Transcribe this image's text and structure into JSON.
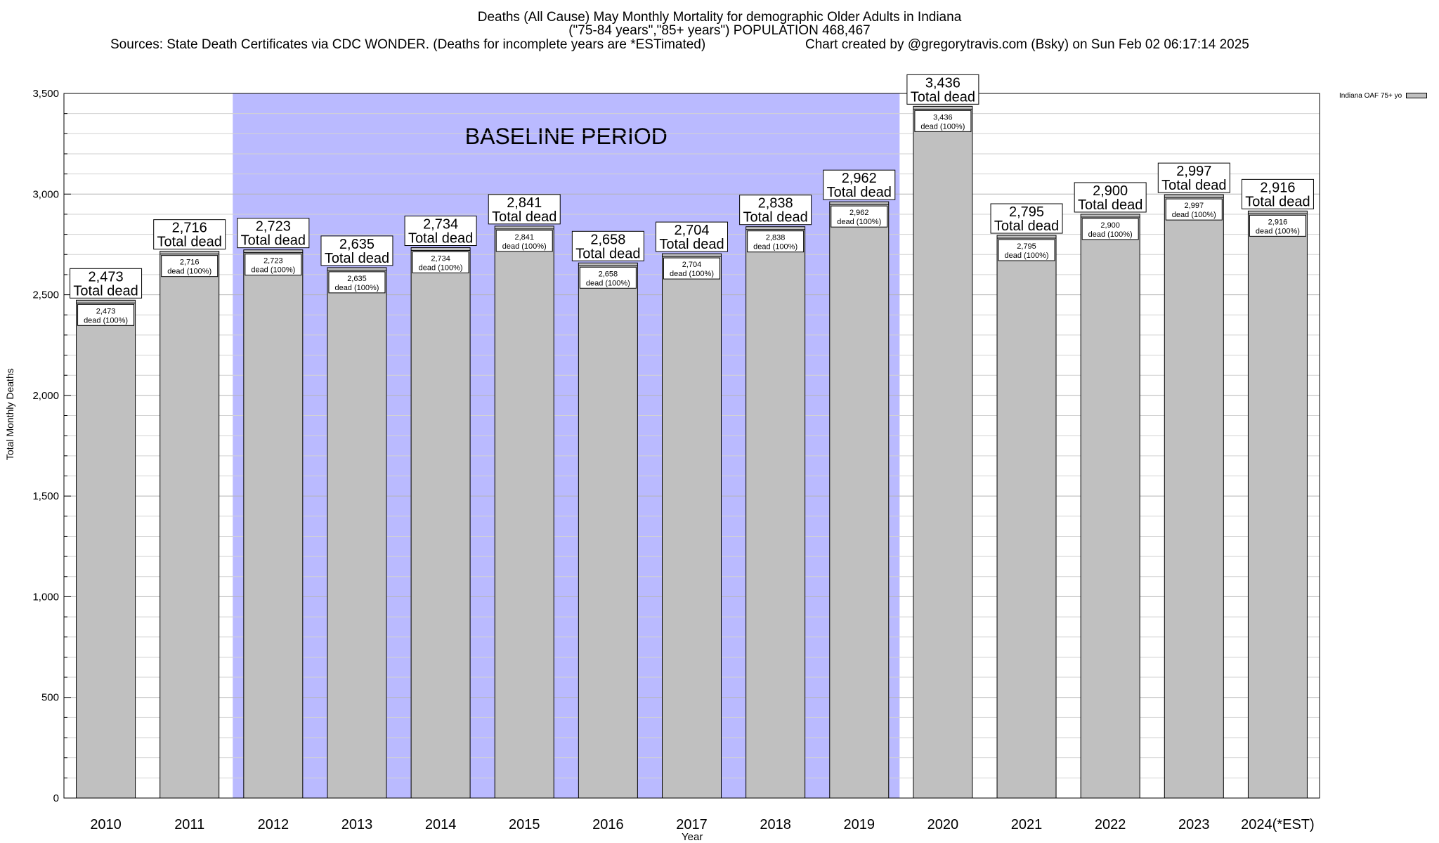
{
  "chart_data": {
    "type": "bar",
    "title_lines": [
      "Deaths (All Cause) May Monthly Mortality for demographic Older Adults in Indiana",
      "(\"75-84 years\",\"85+ years\") POPULATION 468,467"
    ],
    "sources": "Sources: State Death Certificates via CDC WONDER. (Deaths for incomplete years are *ESTimated)",
    "credit": "Chart created by @gregorytravis.com (Bsky) on Sun Feb 02 06:17:14 2025",
    "xlabel": "Year",
    "ylabel": "Total Monthly Deaths",
    "ylim": [
      0,
      3500
    ],
    "yticks": [
      0,
      500,
      1000,
      1500,
      2000,
      2500,
      3000,
      3500
    ],
    "ytick_labels": [
      "0",
      "500",
      "1,000",
      "1,500",
      "2,000",
      "2,500",
      "3,000",
      "3,500"
    ],
    "grid": true,
    "legend_position": "top-right",
    "categories": [
      "2010",
      "2011",
      "2012",
      "2013",
      "2014",
      "2015",
      "2016",
      "2017",
      "2018",
      "2019",
      "2020",
      "2021",
      "2022",
      "2023",
      "2024(*EST)"
    ],
    "series": [
      {
        "name": "Indiana OAF 75+ yo",
        "values": [
          2473,
          2716,
          2723,
          2635,
          2734,
          2841,
          2658,
          2704,
          2838,
          2962,
          3436,
          2795,
          2900,
          2997,
          2916
        ],
        "color": "#c0c0c0"
      }
    ],
    "value_labels": [
      "2,473",
      "2,716",
      "2,723",
      "2,635",
      "2,734",
      "2,841",
      "2,658",
      "2,704",
      "2,838",
      "2,962",
      "3,436",
      "2,795",
      "2,900",
      "2,997",
      "2,916"
    ],
    "top_label_suffix": "Total dead",
    "inner_label_suffix": "dead (100%)",
    "baseline": {
      "label": "BASELINE PERIOD",
      "start_category": "2012",
      "end_category": "2019",
      "color": "#babaff"
    },
    "colors": {
      "bar_fill": "#c0c0c0",
      "bar_stroke": "#000000",
      "baseline_fill": "#babaff",
      "grid": "#c8c8c8"
    }
  }
}
